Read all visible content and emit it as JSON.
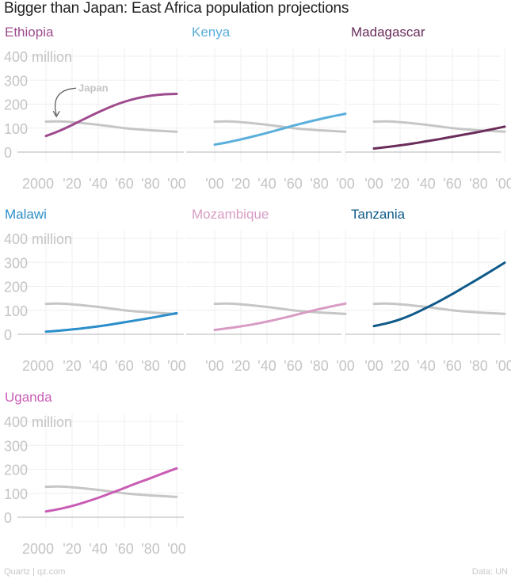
{
  "chart_data": {
    "type": "line",
    "title": "Bigger than Japan: East Africa population projections",
    "source": "Quartz | qz.com",
    "credit": "Data: UN",
    "x_tick_labels_first": [
      "2000",
      "'20",
      "'40",
      "'60",
      "'80",
      "'00"
    ],
    "x_tick_labels": [
      "'00",
      "'20",
      "'40",
      "'60",
      "'80",
      "'00"
    ],
    "y_tick_labels": [
      "0",
      "100",
      "200",
      "300",
      "400 million"
    ],
    "y_ticks": [
      0,
      100,
      200,
      300,
      400
    ],
    "xlim": [
      2000,
      2100
    ],
    "ylim": [
      0,
      400
    ],
    "annotation": "Japan",
    "reference_series": {
      "name": "Japan",
      "color": "#c6c6c6",
      "x": [
        2000,
        2010,
        2020,
        2030,
        2040,
        2050,
        2060,
        2070,
        2080,
        2090,
        2100
      ],
      "values": [
        127,
        128,
        125,
        120,
        114,
        107,
        100,
        95,
        91,
        88,
        85
      ]
    },
    "panels": [
      {
        "name": "Ethiopia",
        "color": "#9e4b8e",
        "x": [
          2000,
          2010,
          2020,
          2030,
          2040,
          2050,
          2060,
          2070,
          2080,
          2090,
          2100
        ],
        "values": [
          67,
          88,
          113,
          140,
          166,
          190,
          210,
          225,
          235,
          241,
          243
        ]
      },
      {
        "name": "Kenya",
        "color": "#5aafdc",
        "x": [
          2000,
          2010,
          2020,
          2030,
          2040,
          2050,
          2060,
          2070,
          2080,
          2090,
          2100
        ],
        "values": [
          31,
          41,
          53,
          66,
          80,
          95,
          110,
          124,
          137,
          149,
          160
        ]
      },
      {
        "name": "Madagascar",
        "color": "#6a2d5a",
        "x": [
          2000,
          2010,
          2020,
          2030,
          2040,
          2050,
          2060,
          2070,
          2080,
          2090,
          2100
        ],
        "values": [
          15,
          21,
          28,
          36,
          45,
          54,
          64,
          74,
          84,
          95,
          106
        ]
      },
      {
        "name": "Malawi",
        "color": "#2b8ecb",
        "x": [
          2000,
          2010,
          2020,
          2030,
          2040,
          2050,
          2060,
          2070,
          2080,
          2090,
          2100
        ],
        "values": [
          11,
          15,
          20,
          26,
          33,
          41,
          50,
          59,
          68,
          78,
          88
        ]
      },
      {
        "name": "Mozambique",
        "color": "#d89cc4",
        "x": [
          2000,
          2010,
          2020,
          2030,
          2040,
          2050,
          2060,
          2070,
          2080,
          2090,
          2100
        ],
        "values": [
          18,
          25,
          33,
          42,
          53,
          65,
          78,
          92,
          105,
          117,
          128
        ]
      },
      {
        "name": "Tanzania",
        "color": "#0f5a8a",
        "x": [
          2000,
          2010,
          2020,
          2030,
          2040,
          2050,
          2060,
          2070,
          2080,
          2090,
          2100
        ],
        "values": [
          34,
          46,
          62,
          84,
          110,
          138,
          168,
          200,
          232,
          265,
          299
        ]
      },
      {
        "name": "Uganda",
        "color": "#c95db5",
        "x": [
          2000,
          2010,
          2020,
          2030,
          2040,
          2050,
          2060,
          2070,
          2080,
          2090,
          2100
        ],
        "values": [
          24,
          34,
          47,
          63,
          81,
          101,
          122,
          143,
          163,
          184,
          204
        ]
      }
    ]
  }
}
